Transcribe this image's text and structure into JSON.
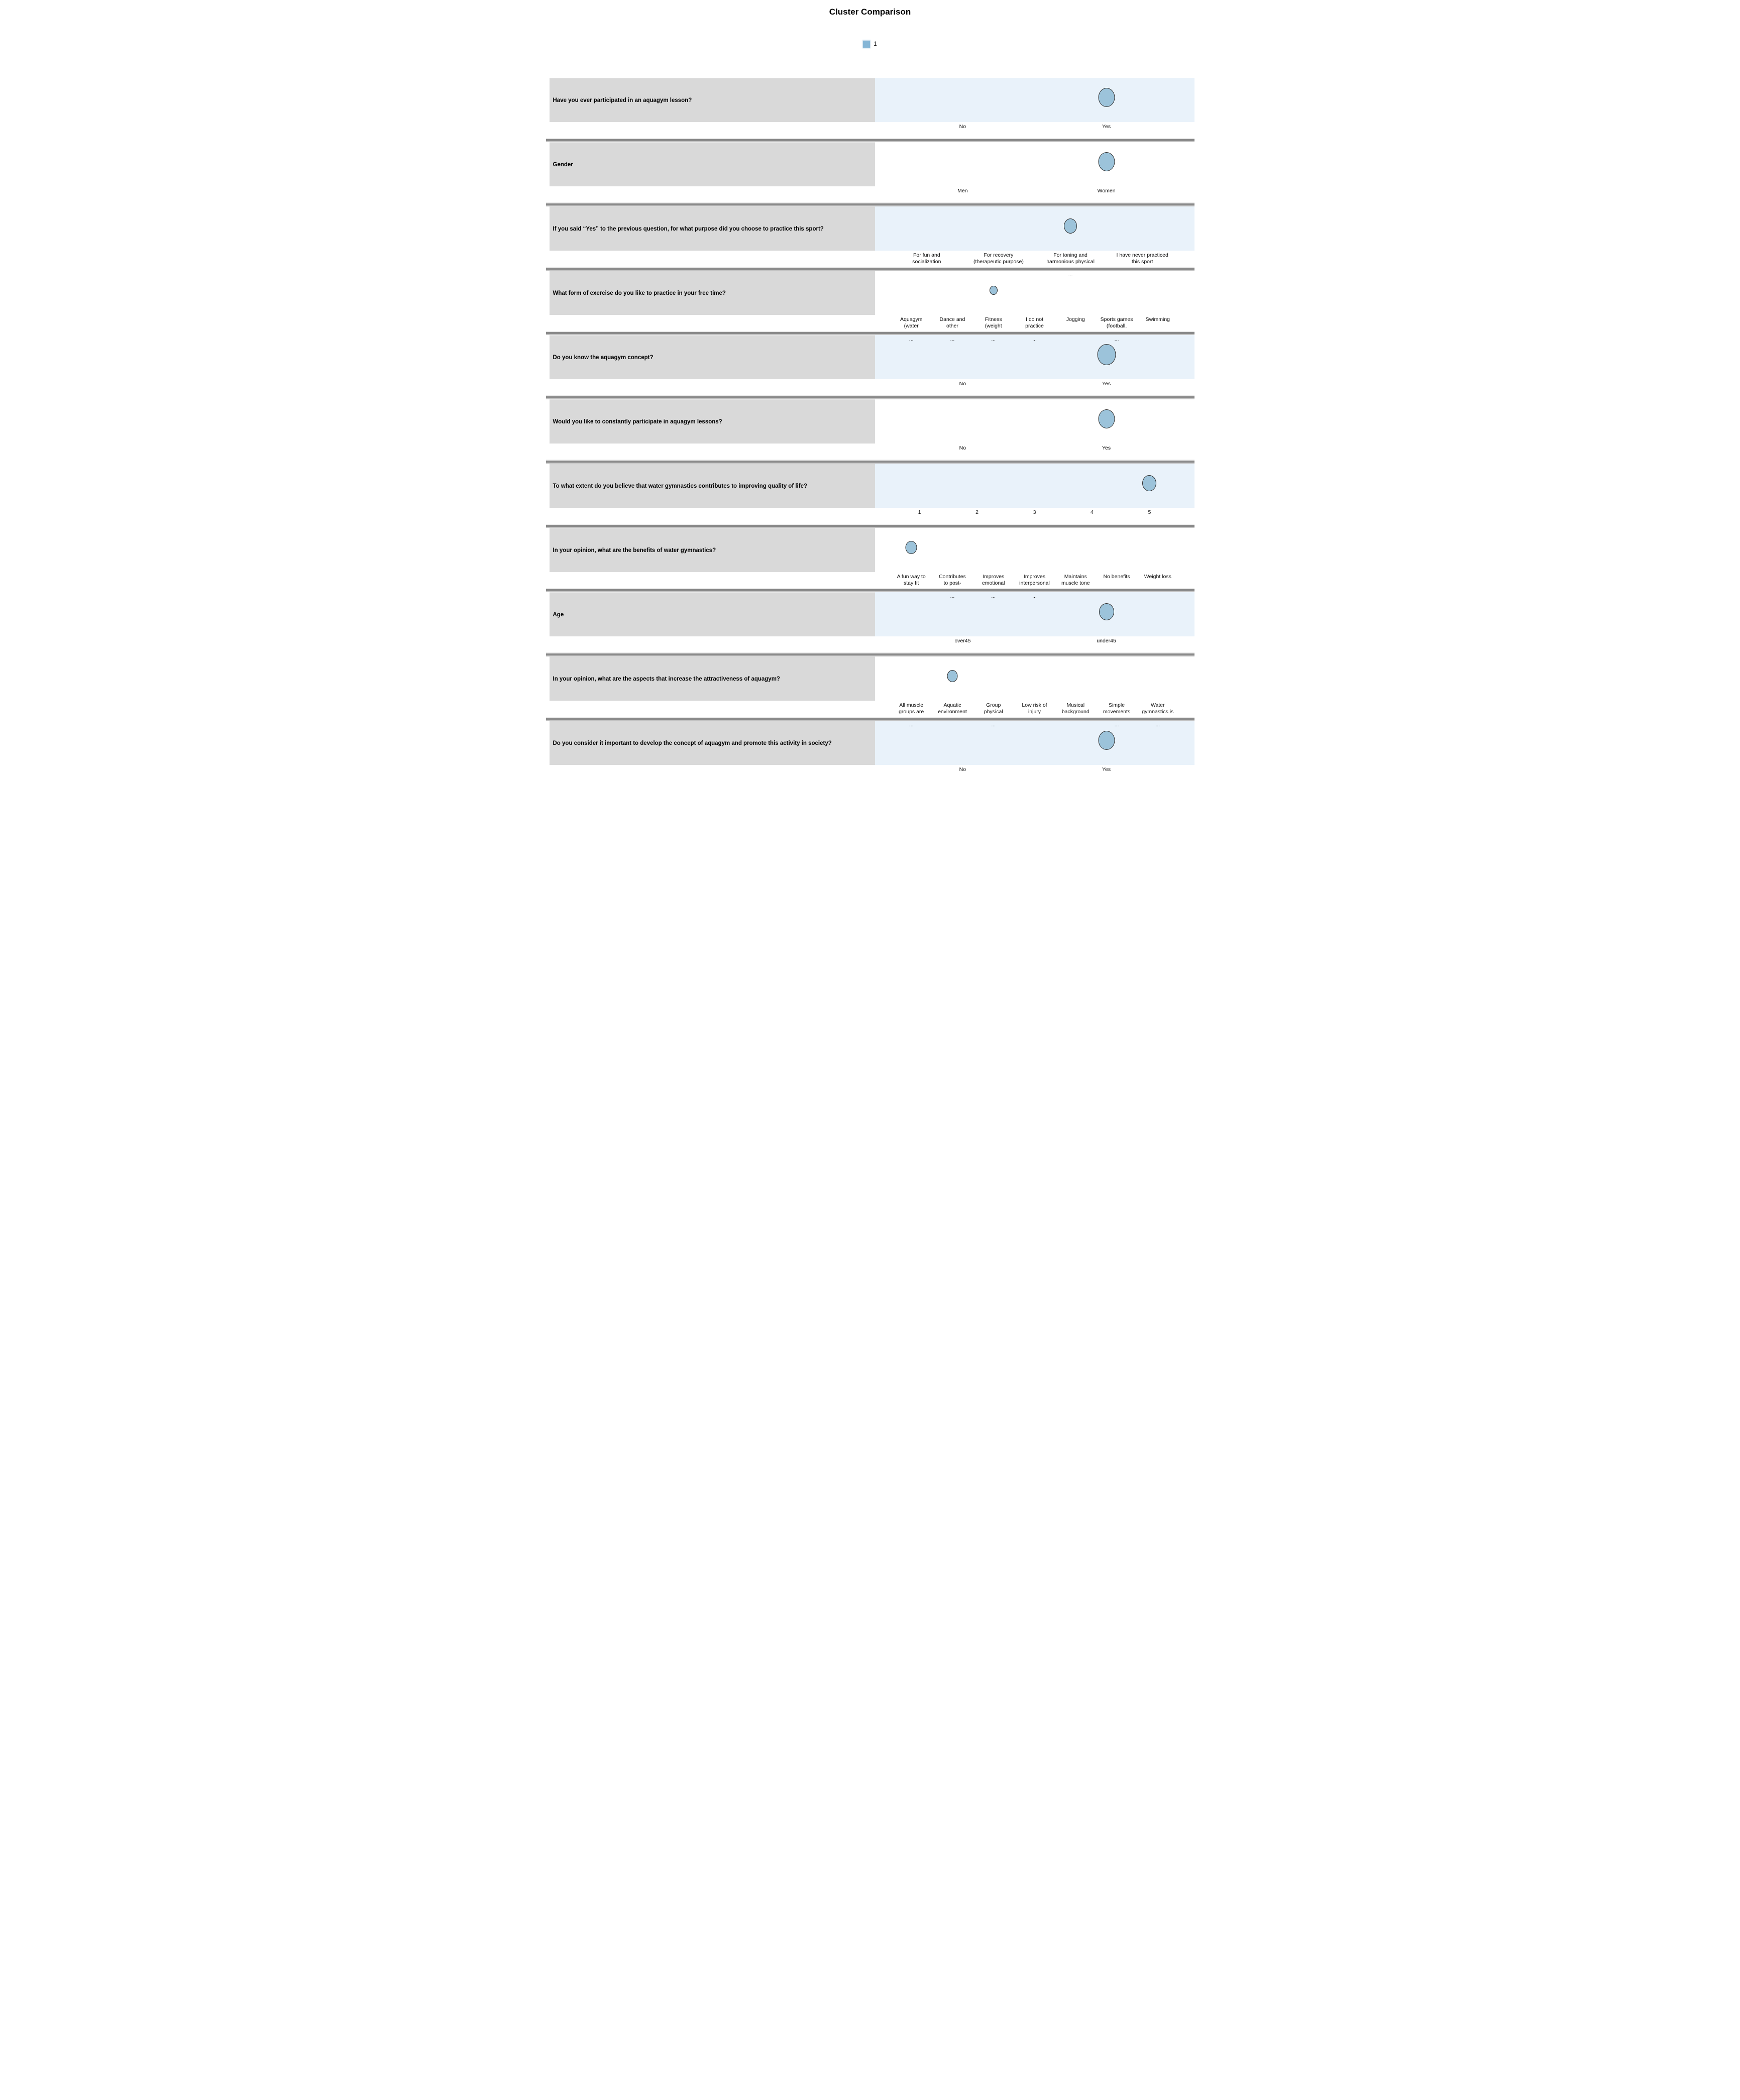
{
  "title": "Cluster Comparison",
  "legend": {
    "items": [
      {
        "label": "1",
        "color": "#85b6d6"
      }
    ]
  },
  "colors": {
    "row_label_bg": "#d9d9d9",
    "plot_bg_blue": "#e9f2fa",
    "plot_bg_white": "#ffffff",
    "dot_fill": "#9cc3da",
    "dot_border": "#2b2b2b",
    "divider_dark": "#8a8a8a",
    "divider_light": "#c3c3c3"
  },
  "rows": [
    {
      "question": "Have you ever participated in an aquagym lesson?",
      "plot_bg": "blue",
      "categories": [
        {
          "lines": [
            "No"
          ],
          "truncated": false
        },
        {
          "lines": [
            "Yes"
          ],
          "truncated": false
        }
      ],
      "dot": {
        "category_index": 1,
        "size": 38
      }
    },
    {
      "question": "Gender",
      "plot_bg": "white",
      "categories": [
        {
          "lines": [
            "Men"
          ],
          "truncated": false
        },
        {
          "lines": [
            "Women"
          ],
          "truncated": false
        }
      ],
      "dot": {
        "category_index": 1,
        "size": 38
      }
    },
    {
      "question": "If you said “Yes” to the previous question, for what purpose did you choose to practice this sport?",
      "plot_bg": "blue",
      "categories": [
        {
          "lines": [
            "For fun and",
            "socialization"
          ],
          "truncated": false
        },
        {
          "lines": [
            "For recovery",
            "(therapeutic purpose)"
          ],
          "truncated": false
        },
        {
          "lines": [
            "For toning and",
            "harmonious physical"
          ],
          "truncated": true
        },
        {
          "lines": [
            "I have never practiced",
            "this sport"
          ],
          "truncated": false
        }
      ],
      "dot": {
        "category_index": 2,
        "size": 30
      }
    },
    {
      "question": "What form of exercise do you like to practice in your free time?",
      "plot_bg": "white",
      "categories": [
        {
          "lines": [
            "Aquagym",
            "(water"
          ],
          "truncated": true
        },
        {
          "lines": [
            "Dance and",
            "other"
          ],
          "truncated": true
        },
        {
          "lines": [
            "Fitness",
            "(weight"
          ],
          "truncated": true
        },
        {
          "lines": [
            "I do not",
            "practice"
          ],
          "truncated": true
        },
        {
          "lines": [
            "Jogging"
          ],
          "truncated": false
        },
        {
          "lines": [
            "Sports games",
            "(football,"
          ],
          "truncated": true
        },
        {
          "lines": [
            "Swimming"
          ],
          "truncated": false
        }
      ],
      "dot": {
        "category_index": 2,
        "size": 18
      }
    },
    {
      "question": "Do you know the aquagym concept?",
      "plot_bg": "blue",
      "categories": [
        {
          "lines": [
            "No"
          ],
          "truncated": false
        },
        {
          "lines": [
            "Yes"
          ],
          "truncated": false
        }
      ],
      "dot": {
        "category_index": 1,
        "size": 42
      }
    },
    {
      "question": "Would you like to constantly participate in aquagym lessons?",
      "plot_bg": "white",
      "categories": [
        {
          "lines": [
            "No"
          ],
          "truncated": false
        },
        {
          "lines": [
            "Yes"
          ],
          "truncated": false
        }
      ],
      "dot": {
        "category_index": 1,
        "size": 38
      }
    },
    {
      "question": "To what extent do you believe that water gymnastics contributes to improving quality of life?",
      "plot_bg": "blue",
      "categories": [
        {
          "lines": [
            "1"
          ],
          "truncated": false
        },
        {
          "lines": [
            "2"
          ],
          "truncated": false
        },
        {
          "lines": [
            "3"
          ],
          "truncated": false
        },
        {
          "lines": [
            "4"
          ],
          "truncated": false
        },
        {
          "lines": [
            "5"
          ],
          "truncated": false
        }
      ],
      "dot": {
        "category_index": 4,
        "size": 32
      }
    },
    {
      "question": "In your opinion, what are the benefits of water gymnastics?",
      "plot_bg": "white",
      "categories": [
        {
          "lines": [
            "A fun way to",
            "stay fit"
          ],
          "truncated": false
        },
        {
          "lines": [
            "Contributes",
            "to post-"
          ],
          "truncated": true
        },
        {
          "lines": [
            "Improves",
            "emotional"
          ],
          "truncated": true
        },
        {
          "lines": [
            "Improves",
            "interpersonal"
          ],
          "truncated": true
        },
        {
          "lines": [
            "Maintains",
            "muscle tone"
          ],
          "truncated": false
        },
        {
          "lines": [
            "No benefits"
          ],
          "truncated": false
        },
        {
          "lines": [
            "Weight loss"
          ],
          "truncated": false
        }
      ],
      "dot": {
        "category_index": 0,
        "size": 26
      }
    },
    {
      "question": "Age",
      "plot_bg": "blue",
      "categories": [
        {
          "lines": [
            "over45"
          ],
          "truncated": false
        },
        {
          "lines": [
            "under45"
          ],
          "truncated": false
        }
      ],
      "dot": {
        "category_index": 1,
        "size": 34
      }
    },
    {
      "question": "In your opinion, what are the aspects that increase the attractiveness of aquagym?",
      "plot_bg": "white",
      "categories": [
        {
          "lines": [
            "All muscle",
            "groups are"
          ],
          "truncated": true
        },
        {
          "lines": [
            "Aquatic",
            "environment"
          ],
          "truncated": false
        },
        {
          "lines": [
            "Group",
            "physical"
          ],
          "truncated": true
        },
        {
          "lines": [
            "Low risk of",
            "injury"
          ],
          "truncated": false
        },
        {
          "lines": [
            "Musical",
            "background"
          ],
          "truncated": false
        },
        {
          "lines": [
            "Simple",
            "movements"
          ],
          "truncated": true
        },
        {
          "lines": [
            "Water",
            "gymnastics is"
          ],
          "truncated": true
        }
      ],
      "dot": {
        "category_index": 1,
        "size": 24
      }
    },
    {
      "question": "Do you consider it important to develop the concept of aquagym and promote this activity in society?",
      "plot_bg": "blue",
      "categories": [
        {
          "lines": [
            "No"
          ],
          "truncated": false
        },
        {
          "lines": [
            "Yes"
          ],
          "truncated": false
        }
      ],
      "dot": {
        "category_index": 1,
        "size": 38
      }
    }
  ],
  "chart_data": {
    "type": "scatter",
    "title": "Cluster Comparison",
    "legend_entries": [
      "1"
    ],
    "legend_position": "top-center",
    "description": "Categorical dot plot comparing cluster 1 across survey questions; one marker per question at the modal category, marker size reflects share.",
    "panels": [
      {
        "question": "Have you ever participated in an aquagym lesson?",
        "categories": [
          "No",
          "Yes"
        ],
        "cluster_1_value": "Yes",
        "marker_size_px": 38
      },
      {
        "question": "Gender",
        "categories": [
          "Men",
          "Women"
        ],
        "cluster_1_value": "Women",
        "marker_size_px": 38
      },
      {
        "question": "If you said “Yes” to the previous question, for what purpose did you choose to practice this sport?",
        "categories": [
          "For fun and socialization",
          "For recovery (therapeutic purpose)",
          "For toning and harmonious physical ...",
          "I have never practiced this sport"
        ],
        "cluster_1_value": "For toning and harmonious physical ...",
        "marker_size_px": 30
      },
      {
        "question": "What form of exercise do you like to practice in your free time?",
        "categories": [
          "Aquagym (water ...",
          "Dance and other ...",
          "Fitness (weight ...",
          "I do not practice ...",
          "Jogging",
          "Sports games (football, ...",
          "Swimming"
        ],
        "cluster_1_value": "Fitness (weight ...",
        "marker_size_px": 18
      },
      {
        "question": "Do you know the aquagym concept?",
        "categories": [
          "No",
          "Yes"
        ],
        "cluster_1_value": "Yes",
        "marker_size_px": 42
      },
      {
        "question": "Would you like to constantly participate in aquagym lessons?",
        "categories": [
          "No",
          "Yes"
        ],
        "cluster_1_value": "Yes",
        "marker_size_px": 38
      },
      {
        "question": "To what extent do you believe that water gymnastics contributes to improving quality of life?",
        "categories": [
          "1",
          "2",
          "3",
          "4",
          "5"
        ],
        "cluster_1_value": "5",
        "marker_size_px": 32
      },
      {
        "question": "In your opinion, what are the benefits of water gymnastics?",
        "categories": [
          "A fun way to stay fit",
          "Contributes to post- ...",
          "Improves emotional ...",
          "Improves interpersonal ...",
          "Maintains muscle tone",
          "No benefits",
          "Weight loss"
        ],
        "cluster_1_value": "A fun way to stay fit",
        "marker_size_px": 26
      },
      {
        "question": "Age",
        "categories": [
          "over45",
          "under45"
        ],
        "cluster_1_value": "under45",
        "marker_size_px": 34
      },
      {
        "question": "In your opinion, what are the aspects that increase the attractiveness of aquagym?",
        "categories": [
          "All muscle groups are ...",
          "Aquatic environment",
          "Group physical ...",
          "Low risk of injury",
          "Musical background",
          "Simple movements ...",
          "Water gymnastics is ..."
        ],
        "cluster_1_value": "Aquatic environment",
        "marker_size_px": 24
      },
      {
        "question": "Do you consider it important to develop the concept of aquagym and promote this activity in society?",
        "categories": [
          "No",
          "Yes"
        ],
        "cluster_1_value": "Yes",
        "marker_size_px": 38
      }
    ]
  }
}
